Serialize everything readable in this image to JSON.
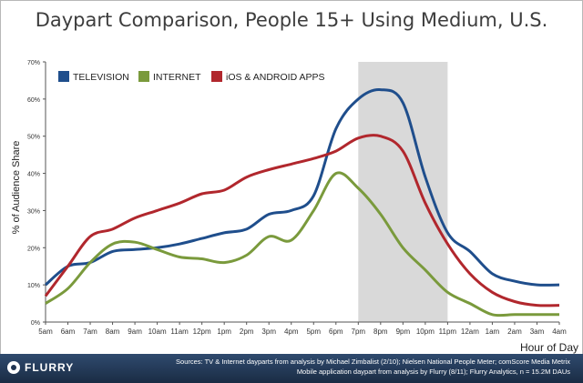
{
  "chart_data": {
    "type": "line",
    "title": "Daypart Comparison, People 15+ Using Medium, U.S.",
    "xlabel": "Hour of Day",
    "ylabel": "% of Audience Share",
    "categories": [
      "5am",
      "6am",
      "7am",
      "8am",
      "9am",
      "10am",
      "11am",
      "12pm",
      "1pm",
      "2pm",
      "3pm",
      "4pm",
      "5pm",
      "6pm",
      "7pm",
      "8pm",
      "9pm",
      "10pm",
      "11pm",
      "12am",
      "1am",
      "2am",
      "3am",
      "4am"
    ],
    "yticks": [
      "0%",
      "10%",
      "20%",
      "30%",
      "40%",
      "50%",
      "60%",
      "70%"
    ],
    "ylim": [
      0,
      70
    ],
    "highlight": {
      "from": "7pm",
      "to": "11pm"
    },
    "legend_position": "top-left",
    "grid": false,
    "series": [
      {
        "name": "TELEVISION",
        "color": "#1f4e8c",
        "values": [
          10,
          15,
          16,
          19,
          19.5,
          20,
          21,
          22.5,
          24,
          25,
          29,
          30,
          34,
          52,
          60,
          62.5,
          59,
          39,
          24,
          19,
          13,
          11,
          10,
          10
        ]
      },
      {
        "name": "INTERNET",
        "color": "#7a9a3c",
        "values": [
          5,
          9,
          16,
          21,
          21.5,
          19.5,
          17.5,
          17,
          16,
          18,
          23,
          22,
          30,
          40,
          36,
          29,
          20,
          14,
          8,
          5,
          2,
          2,
          2,
          2
        ]
      },
      {
        "name": "iOS & ANDROID APPS",
        "color": "#b1272d",
        "values": [
          7,
          15,
          23,
          25,
          28,
          30,
          32,
          34.5,
          35.5,
          39,
          41,
          42.5,
          44,
          46,
          49.5,
          50,
          46,
          32,
          21,
          13,
          8,
          5.5,
          4.5,
          4.5
        ]
      }
    ]
  },
  "footer": {
    "logo": "FLURRY",
    "source_line1": "Sources: TV & Internet dayparts from analysis by Michael Zimbalist (2/10); Nielsen National People Meter; comScore Media Metrix",
    "source_line2": "Mobile application daypart from analysis by Flurry (8/11); Flurry Analytics, n = 15.2M DAUs"
  }
}
